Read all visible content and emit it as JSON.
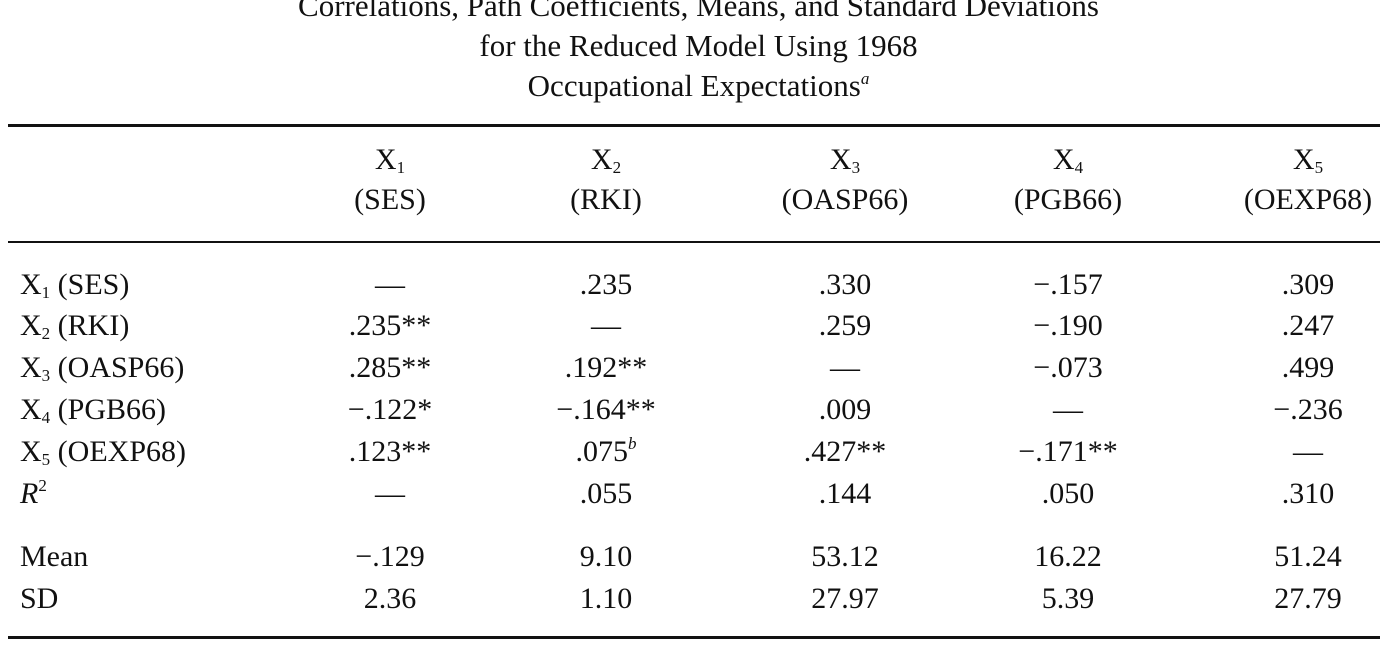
{
  "title": {
    "line1": "Correlations, Path Coefficients, Means, and Standard Deviations",
    "line2": "for the Reduced Model Using 1968",
    "line3": "Occupational Expectations",
    "footnote_mark": "a"
  },
  "columns": [
    {
      "symbol": "X",
      "subscript": "1",
      "abbr": "(SES)"
    },
    {
      "symbol": "X",
      "subscript": "2",
      "abbr": "(RKI)"
    },
    {
      "symbol": "X",
      "subscript": "3",
      "abbr": "(OASP66)"
    },
    {
      "symbol": "X",
      "subscript": "4",
      "abbr": "(PGB66)"
    },
    {
      "symbol": "X",
      "subscript": "5",
      "abbr": "(OEXP68)"
    }
  ],
  "rows": [
    {
      "symbol": "X",
      "subscript": "1",
      "abbr": "(SES)",
      "cells": [
        "—",
        ".235",
        ".330",
        "−.157",
        ".309"
      ]
    },
    {
      "symbol": "X",
      "subscript": "2",
      "abbr": "(RKI)",
      "cells": [
        ".235**",
        "—",
        ".259",
        "−.190",
        ".247"
      ]
    },
    {
      "symbol": "X",
      "subscript": "3",
      "abbr": "(OASP66)",
      "cells": [
        ".285**",
        ".192**",
        "—",
        "−.073",
        ".499"
      ]
    },
    {
      "symbol": "X",
      "subscript": "4",
      "abbr": "(PGB66)",
      "cells": [
        "−.122*",
        "−.164**",
        ".009",
        "—",
        "−.236"
      ]
    },
    {
      "symbol": "X",
      "subscript": "5",
      "abbr": "(OEXP68)",
      "cells": [
        ".123**",
        ".075",
        ".427**",
        "−.171**",
        "—"
      ],
      "c2_note": "b"
    }
  ],
  "r2": {
    "label": "R",
    "superscript": "2",
    "cells": [
      "—",
      ".055",
      ".144",
      ".050",
      ".310"
    ]
  },
  "mean": {
    "label": "Mean",
    "cells": [
      "−.129",
      "9.10",
      "53.12",
      "16.22",
      "51.24"
    ]
  },
  "sd": {
    "label": "SD",
    "cells": [
      "2.36",
      "1.10",
      "27.97",
      "5.39",
      "27.79"
    ]
  }
}
